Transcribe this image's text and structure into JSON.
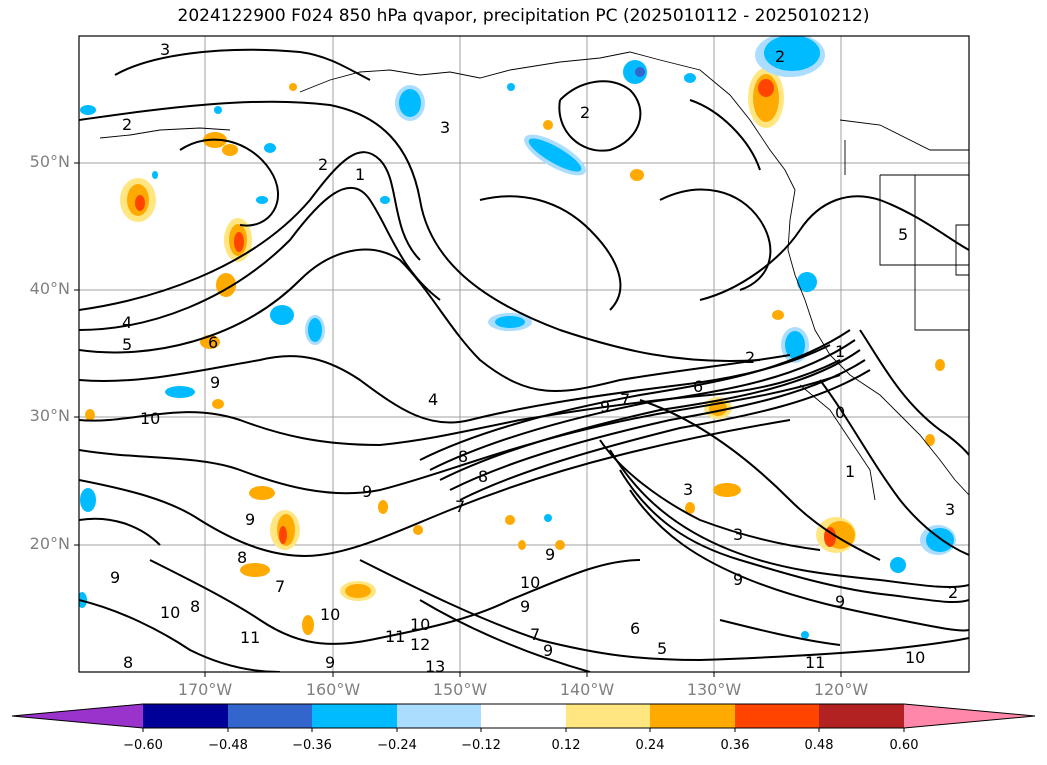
{
  "title": "2024122900 F024 850 hPa qvapor, precipitation PC (2025010112 - 2025010212)",
  "latitude_labels": [
    "50°N",
    "40°N",
    "30°N",
    "20°N"
  ],
  "longitude_labels": [
    "170°W",
    "160°W",
    "150°W",
    "140°W",
    "130°W",
    "120°W"
  ],
  "colorbar": {
    "tick_labels": [
      "−0.60",
      "−0.48",
      "−0.36",
      "−0.24",
      "−0.12",
      "0.12",
      "0.24",
      "0.36",
      "0.48",
      "0.60"
    ],
    "colors": [
      "#9933cc",
      "#000099",
      "#3366cc",
      "#00bbff",
      "#aaddff",
      "#ffffff",
      "#ffe680",
      "#ffaa00",
      "#ff4400",
      "#b22222",
      "#ff88aa"
    ]
  },
  "contour_labels": [
    "3",
    "2",
    "3",
    "2",
    "2",
    "1",
    "2",
    "4",
    "5",
    "6",
    "9",
    "10",
    "4",
    "7",
    "8",
    "9",
    "8",
    "7",
    "3",
    "3",
    "9",
    "9",
    "10",
    "8",
    "10",
    "11",
    "12",
    "13",
    "9",
    "10",
    "11",
    "6",
    "5",
    "9",
    "10",
    "2",
    "1",
    "0",
    "1",
    "3",
    "2",
    "5",
    "6",
    "9",
    "10",
    "8",
    "8",
    "7",
    "7",
    "9",
    "9",
    "9",
    "11",
    "9"
  ]
}
